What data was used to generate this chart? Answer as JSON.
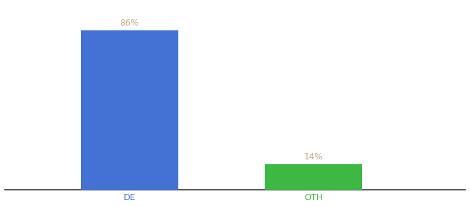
{
  "categories": [
    "DE",
    "OTH"
  ],
  "values": [
    86,
    14
  ],
  "bar_colors": [
    "#4472d4",
    "#3cb843"
  ],
  "label_color": "#c8a882",
  "label_fontsize": 9,
  "tick_fontsize": 9,
  "tick_label_colors": [
    "#4472d4",
    "#3cb843"
  ],
  "background_color": "#ffffff",
  "ylim": [
    0,
    100
  ],
  "bar_width": 0.18,
  "x_positions": [
    0.28,
    0.62
  ]
}
